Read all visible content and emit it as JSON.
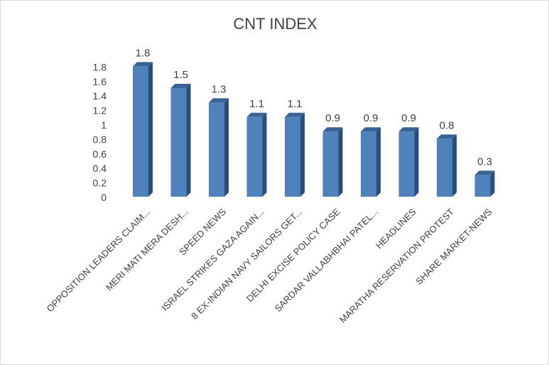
{
  "chart_data": {
    "type": "bar",
    "title": "CNT INDEX",
    "categories": [
      "OPPOSITION LEADERS CLAIM...",
      "MERI MATI MERA DESH...",
      "SPEED NEWS",
      "ISRAEL STRIKES GAZA AGAIN...",
      "8 EX-INDIAN NAVY SAILORS GET...",
      "DELHI EXCISE POLICY CASE",
      "SARDAR VALLABHBHAI PATEL...",
      "HEADLINES",
      "MARATHA RESERVATION PROTEST",
      "SHARE MARKET-NEWS"
    ],
    "values": [
      1.8,
      1.5,
      1.3,
      1.1,
      1.1,
      0.9,
      0.9,
      0.9,
      0.8,
      0.3
    ],
    "value_labels": [
      "1.8",
      "1.5",
      "1.3",
      "1.1",
      "1.1",
      "0.9",
      "0.9",
      "0.9",
      "0.8",
      "0.3"
    ],
    "yticks": [
      "0",
      "0.2",
      "0.4",
      "0.6",
      "0.8",
      "1",
      "1.2",
      "1.4",
      "1.6",
      "1.8"
    ],
    "ylim": [
      0,
      1.8
    ],
    "xlabel": "",
    "ylabel": "",
    "grid": false,
    "legend": "none",
    "bar_style": "3d-column",
    "colors": {
      "bar_front": "#4f81bd",
      "bar_side": "#2c4d75",
      "bar_top": "#3a6395",
      "text": "#404040",
      "border": "#d9d9d9"
    }
  }
}
